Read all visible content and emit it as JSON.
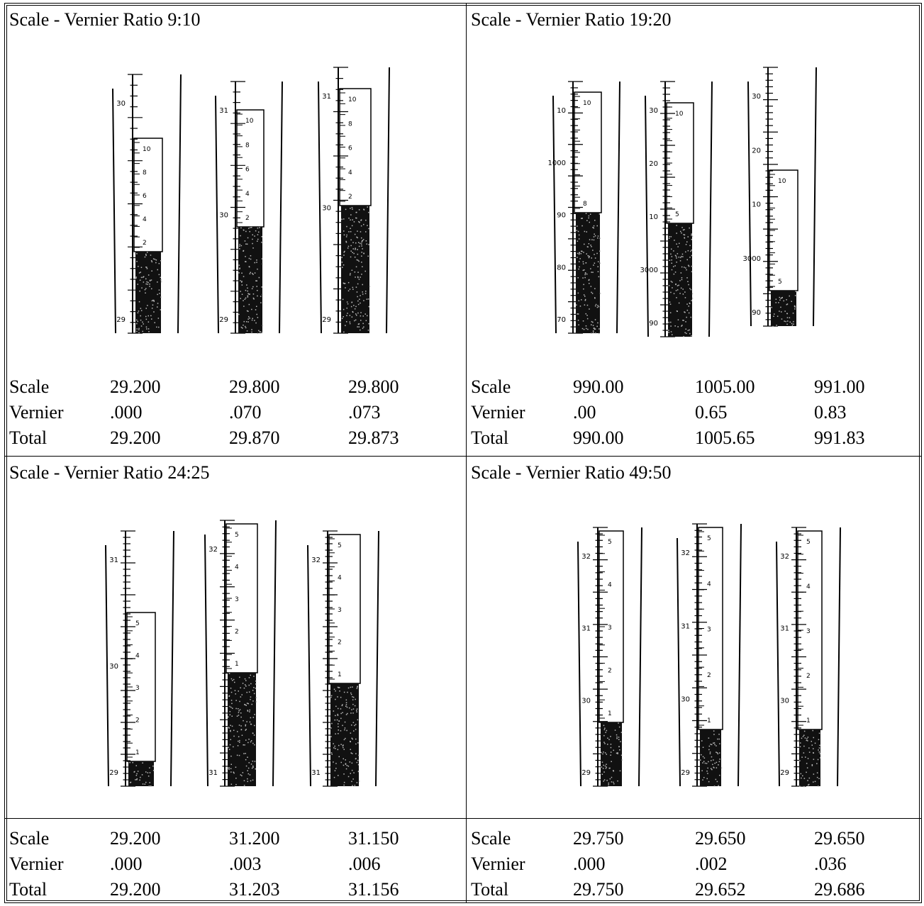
{
  "panels": [
    {
      "title": "Scale - Vernier Ratio 9:10",
      "instrument_labels": [
        {
          "scale_marks": [
            "30",
            "29"
          ],
          "vernier_marks": [
            "10",
            "8",
            "6",
            "4",
            "2"
          ]
        },
        {
          "scale_marks": [
            "31",
            "30",
            "29"
          ],
          "vernier_marks": [
            "10",
            "8",
            "6",
            "4",
            "2"
          ]
        },
        {
          "scale_marks": [
            "31",
            "30",
            "29"
          ],
          "vernier_marks": [
            "10",
            "8",
            "6",
            "4",
            "2"
          ]
        }
      ],
      "readings": {
        "scale_label": "Scale",
        "vernier_label": "Vernier",
        "total_label": "Total",
        "scale": [
          "29.200",
          "29.800",
          "29.800"
        ],
        "vernier": [
          ".000",
          ".070",
          ".073"
        ],
        "total": [
          "29.200",
          "29.870",
          "29.873"
        ]
      }
    },
    {
      "title": "Scale - Vernier Ratio 19:20",
      "instrument_labels": [
        {
          "scale_marks": [
            "10",
            "1000",
            "90",
            "80",
            "70"
          ],
          "vernier_marks": [
            "10",
            "8"
          ]
        },
        {
          "scale_marks": [
            "30",
            "20",
            "10",
            "3000",
            "90"
          ],
          "vernier_marks": [
            "10",
            "5"
          ]
        },
        {
          "scale_marks": [
            "30",
            "20",
            "10",
            "3000",
            "90"
          ],
          "vernier_marks": [
            "10",
            "5"
          ]
        }
      ],
      "readings": {
        "scale_label": "Scale",
        "vernier_label": "Vernier",
        "total_label": "Total",
        "scale": [
          "990.00",
          "1005.00",
          "991.00"
        ],
        "vernier": [
          ".00",
          "0.65",
          "0.83"
        ],
        "total": [
          "990.00",
          "1005.65",
          "991.83"
        ]
      }
    },
    {
      "title": "Scale - Vernier Ratio 24:25",
      "instrument_labels": [
        {
          "scale_marks": [
            "31",
            "30",
            "29"
          ],
          "vernier_marks": [
            "5",
            "4",
            "3",
            "2",
            "1"
          ]
        },
        {
          "scale_marks": [
            "32",
            "31"
          ],
          "vernier_marks": [
            "5",
            "4",
            "3",
            "2",
            "1"
          ]
        },
        {
          "scale_marks": [
            "32",
            "31"
          ],
          "vernier_marks": [
            "5",
            "4",
            "3",
            "2",
            "1"
          ]
        }
      ],
      "readings": {
        "scale_label": "Scale",
        "vernier_label": "Vernier",
        "total_label": "Total",
        "scale": [
          "29.200",
          "31.200",
          "31.150"
        ],
        "vernier": [
          ".000",
          ".003",
          ".006"
        ],
        "total": [
          "29.200",
          "31.203",
          "31.156"
        ]
      }
    },
    {
      "title": "Scale - Vernier Ratio 49:50",
      "instrument_labels": [
        {
          "scale_marks": [
            "32",
            "31",
            "30",
            "29"
          ],
          "vernier_marks": [
            "5",
            "4",
            "3",
            "2",
            "1"
          ]
        },
        {
          "scale_marks": [
            "32",
            "31",
            "30",
            "29"
          ],
          "vernier_marks": [
            "5",
            "4",
            "3",
            "2",
            "1"
          ]
        },
        {
          "scale_marks": [
            "32",
            "31",
            "30",
            "29"
          ],
          "vernier_marks": [
            "5",
            "4",
            "3",
            "2",
            "1"
          ]
        }
      ],
      "readings": {
        "scale_label": "Scale",
        "vernier_label": "Vernier",
        "total_label": "Total",
        "scale": [
          "29.750",
          "29.650",
          "29.650"
        ],
        "vernier": [
          ".000",
          ".002",
          ".036"
        ],
        "total": [
          "29.750",
          "29.652",
          "29.686"
        ]
      }
    }
  ]
}
